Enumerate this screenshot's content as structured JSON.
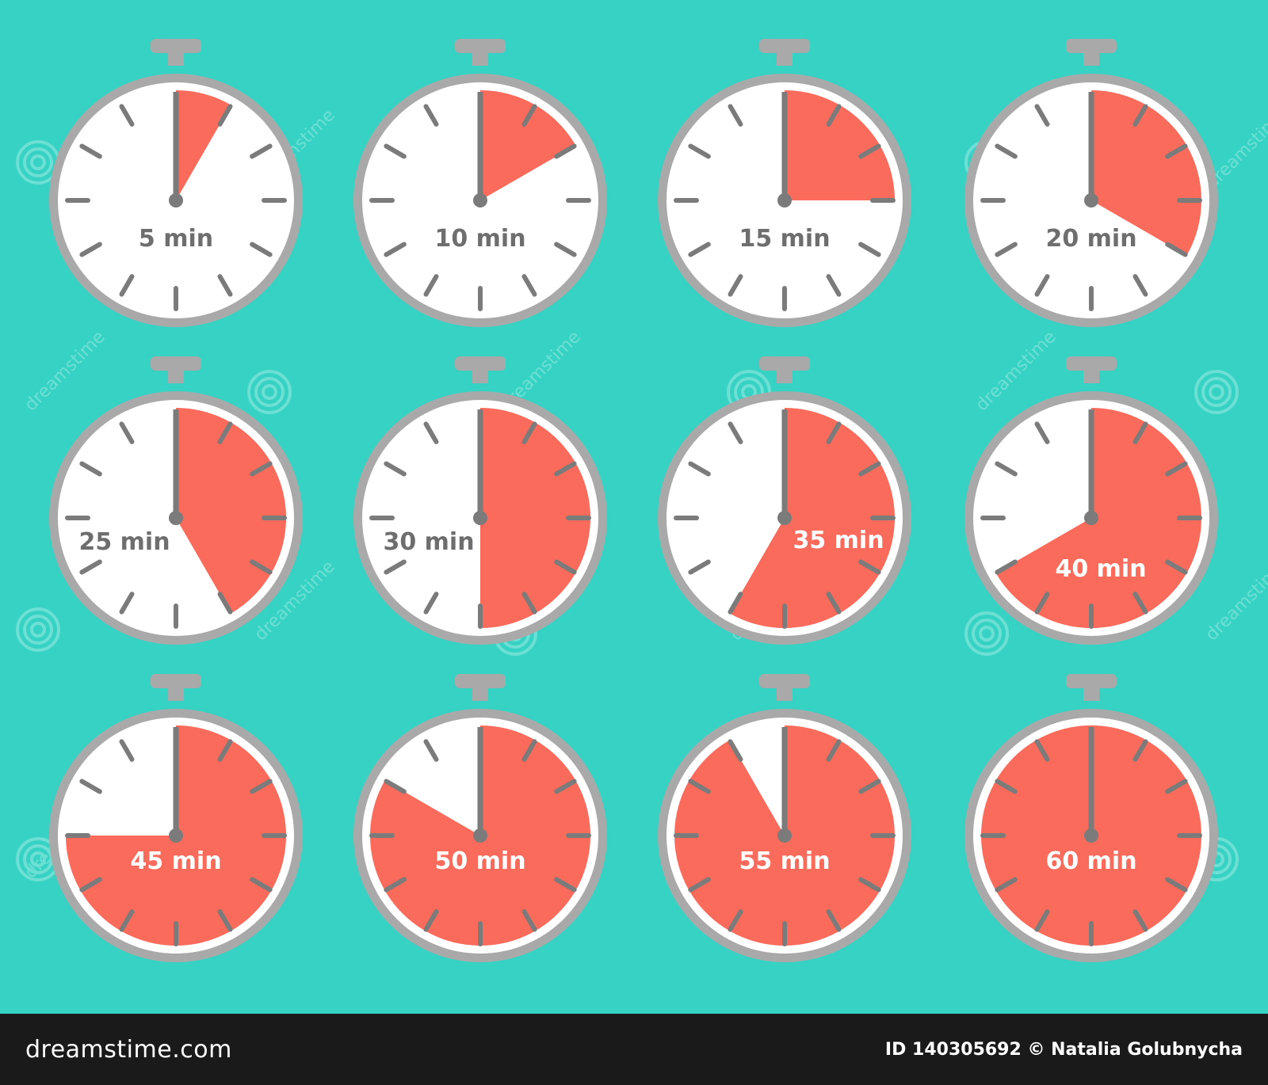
{
  "colors": {
    "background": "#36D3C4",
    "face": "#FFFFFF",
    "rim": "#A9A9A9",
    "ticks": "#7B7B7B",
    "fill": "#FA6B5C",
    "label_dark": "#6E6E6E",
    "label_light": "#FFFFFF",
    "footer_bg": "#1A1A1A"
  },
  "timers": [
    {
      "minutes": 5,
      "label": "5 min"
    },
    {
      "minutes": 10,
      "label": "10 min"
    },
    {
      "minutes": 15,
      "label": "15 min"
    },
    {
      "minutes": 20,
      "label": "20 min"
    },
    {
      "minutes": 25,
      "label": "25 min"
    },
    {
      "minutes": 30,
      "label": "30 min"
    },
    {
      "minutes": 35,
      "label": "35 min"
    },
    {
      "minutes": 40,
      "label": "40 min"
    },
    {
      "minutes": 45,
      "label": "45 min"
    },
    {
      "minutes": 50,
      "label": "50 min"
    },
    {
      "minutes": 55,
      "label": "55 min"
    },
    {
      "minutes": 60,
      "label": "60 min"
    }
  ],
  "watermark": "dreamstime",
  "footer": {
    "brand": "dreamstime.com",
    "credit": "ID 140305692 © Natalia Golubnycha"
  }
}
